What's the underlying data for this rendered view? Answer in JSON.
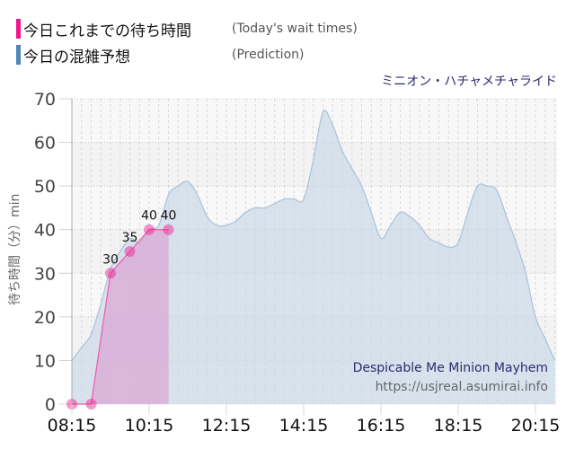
{
  "legend": {
    "actual": {
      "label_ja": "今日これまでの待ち時間",
      "label_en": "(Today's wait times)",
      "color": "#f0168a"
    },
    "prediction": {
      "label_ja": "今日の混雑予想",
      "label_en": "(Prediction)",
      "color": "#4f86b8"
    }
  },
  "attraction_name_ja": "ミニオン・ハチャメチャライド",
  "watermark": {
    "title": "Despicable Me Minion Mayhem",
    "url": "https://usjreal.asumirai.info"
  },
  "chart_data": {
    "type": "area",
    "title": "ミニオン・ハチャメチャライド",
    "xlabel": "",
    "ylabel": "待ち時間（分）min",
    "ylim": [
      0,
      70
    ],
    "yticks": [
      0,
      10,
      20,
      30,
      40,
      50,
      60,
      70
    ],
    "xticks": [
      "08:15",
      "10:15",
      "12:15",
      "14:15",
      "16:15",
      "18:15",
      "20:15"
    ],
    "grid": true,
    "legend_position": "top-left",
    "x": [
      "08:15",
      "08:30",
      "08:45",
      "09:00",
      "09:15",
      "09:30",
      "09:45",
      "10:00",
      "10:15",
      "10:30",
      "10:45",
      "11:00",
      "11:15",
      "11:30",
      "11:45",
      "12:00",
      "12:15",
      "12:30",
      "12:45",
      "13:00",
      "13:15",
      "13:30",
      "13:45",
      "14:00",
      "14:15",
      "14:30",
      "14:45",
      "15:00",
      "15:15",
      "15:30",
      "15:45",
      "16:00",
      "16:15",
      "16:30",
      "16:45",
      "17:00",
      "17:15",
      "17:30",
      "17:45",
      "18:00",
      "18:15",
      "18:30",
      "18:45",
      "19:00",
      "19:15",
      "19:30",
      "19:45",
      "20:00",
      "20:15",
      "20:30",
      "20:45"
    ],
    "series": [
      {
        "name": "今日の混雑予想 (Prediction)",
        "type": "area",
        "color": "#4f86b8",
        "x": [
          "08:15",
          "08:30",
          "08:45",
          "09:00",
          "09:15",
          "09:30",
          "09:45",
          "10:00",
          "10:15",
          "10:30",
          "10:45",
          "11:00",
          "11:15",
          "11:30",
          "11:45",
          "12:00",
          "12:15",
          "12:30",
          "12:45",
          "13:00",
          "13:15",
          "13:30",
          "13:45",
          "14:00",
          "14:15",
          "14:30",
          "14:45",
          "15:00",
          "15:15",
          "15:30",
          "15:45",
          "16:00",
          "16:15",
          "16:30",
          "16:45",
          "17:00",
          "17:15",
          "17:30",
          "17:45",
          "18:00",
          "18:15",
          "18:30",
          "18:45",
          "19:00",
          "19:15",
          "19:30",
          "19:45",
          "20:00",
          "20:15",
          "20:30",
          "20:45"
        ],
        "values": [
          10,
          13,
          16,
          23,
          31,
          35,
          38,
          37,
          40,
          41,
          48,
          50,
          51,
          48,
          43,
          41,
          41,
          42,
          44,
          45,
          45,
          46,
          47,
          47,
          47,
          56,
          67,
          64,
          58,
          54,
          50,
          44,
          38,
          41,
          44,
          43,
          41,
          38,
          37,
          36,
          37,
          44,
          50,
          50,
          49,
          43,
          37,
          30,
          20,
          15,
          10
        ]
      },
      {
        "name": "今日これまでの待ち時間 (Today's wait times)",
        "type": "line-area",
        "color": "#f0168a",
        "x": [
          "08:15",
          "08:45",
          "09:15",
          "09:45",
          "10:15",
          "10:45"
        ],
        "values": [
          0,
          0,
          30,
          35,
          40,
          40
        ],
        "data_labels": [
          "",
          "",
          "30",
          "35",
          "40",
          "40"
        ]
      }
    ]
  }
}
